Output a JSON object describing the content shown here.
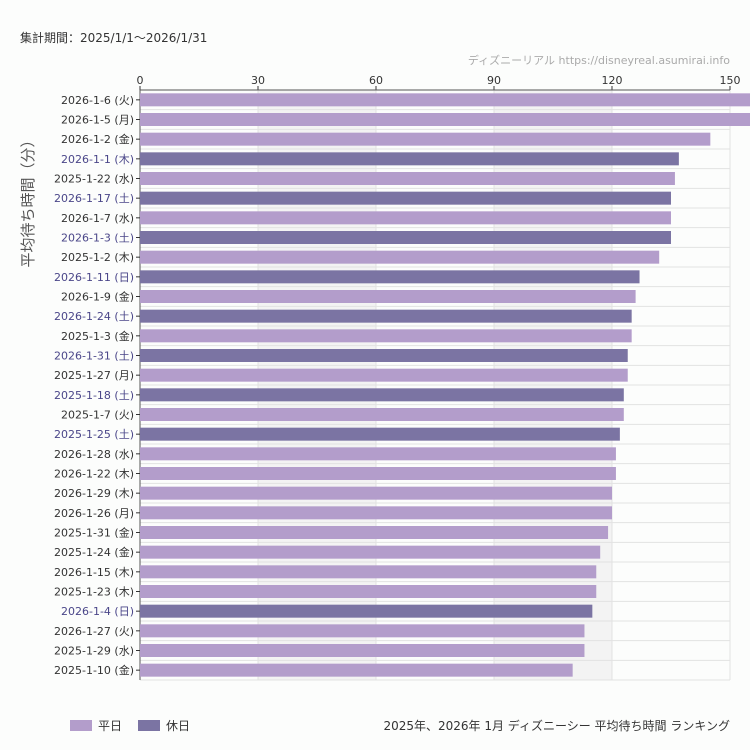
{
  "header": {
    "period": "集計期間：2025/1/1〜2026/1/31",
    "credit": "ディズニーリアル https://disneyreal.asumirai.info"
  },
  "footer": {
    "caption": "2025年、2026年 1月 ディズニーシー 平均待ち時間 ランキング"
  },
  "colors": {
    "weekday": "#b39dcb",
    "holiday": "#7b74a3",
    "holiday_label": "#4a4689",
    "label": "#333333"
  },
  "chart_data": {
    "type": "bar",
    "orientation": "horizontal",
    "ylabel": "平均待ち時間（分）",
    "xlim": [
      0,
      150
    ],
    "xticks": [
      0,
      30,
      60,
      90,
      120,
      150
    ],
    "grid": true,
    "legend_position": "bottom-left",
    "legend": [
      {
        "name": "平日",
        "color": "#b39dcb"
      },
      {
        "name": "休日",
        "color": "#7b74a3"
      }
    ],
    "categories": [
      "2026-1-6 (火)",
      "2026-1-5 (月)",
      "2026-1-2 (金)",
      "2026-1-1 (木)",
      "2025-1-22 (水)",
      "2026-1-17 (土)",
      "2026-1-7 (水)",
      "2026-1-3 (土)",
      "2025-1-2 (木)",
      "2026-1-11 (日)",
      "2026-1-9 (金)",
      "2026-1-24 (土)",
      "2025-1-3 (金)",
      "2026-1-31 (土)",
      "2025-1-27 (月)",
      "2025-1-18 (土)",
      "2025-1-7 (火)",
      "2025-1-25 (土)",
      "2026-1-28 (水)",
      "2026-1-22 (木)",
      "2026-1-29 (木)",
      "2026-1-26 (月)",
      "2025-1-31 (金)",
      "2025-1-24 (金)",
      "2026-1-15 (木)",
      "2025-1-23 (木)",
      "2026-1-4 (日)",
      "2026-1-27 (火)",
      "2025-1-29 (水)",
      "2025-1-10 (金)"
    ],
    "values": [
      156,
      156,
      145,
      137,
      136,
      135,
      135,
      135,
      132,
      127,
      126,
      125,
      125,
      124,
      124,
      123,
      123,
      122,
      121,
      121,
      120,
      120,
      119,
      117,
      116,
      116,
      115,
      113,
      113,
      110
    ],
    "holiday": [
      false,
      false,
      false,
      true,
      false,
      true,
      false,
      true,
      false,
      true,
      false,
      true,
      false,
      true,
      false,
      true,
      false,
      true,
      false,
      false,
      false,
      false,
      false,
      false,
      false,
      false,
      true,
      false,
      false,
      false
    ]
  }
}
